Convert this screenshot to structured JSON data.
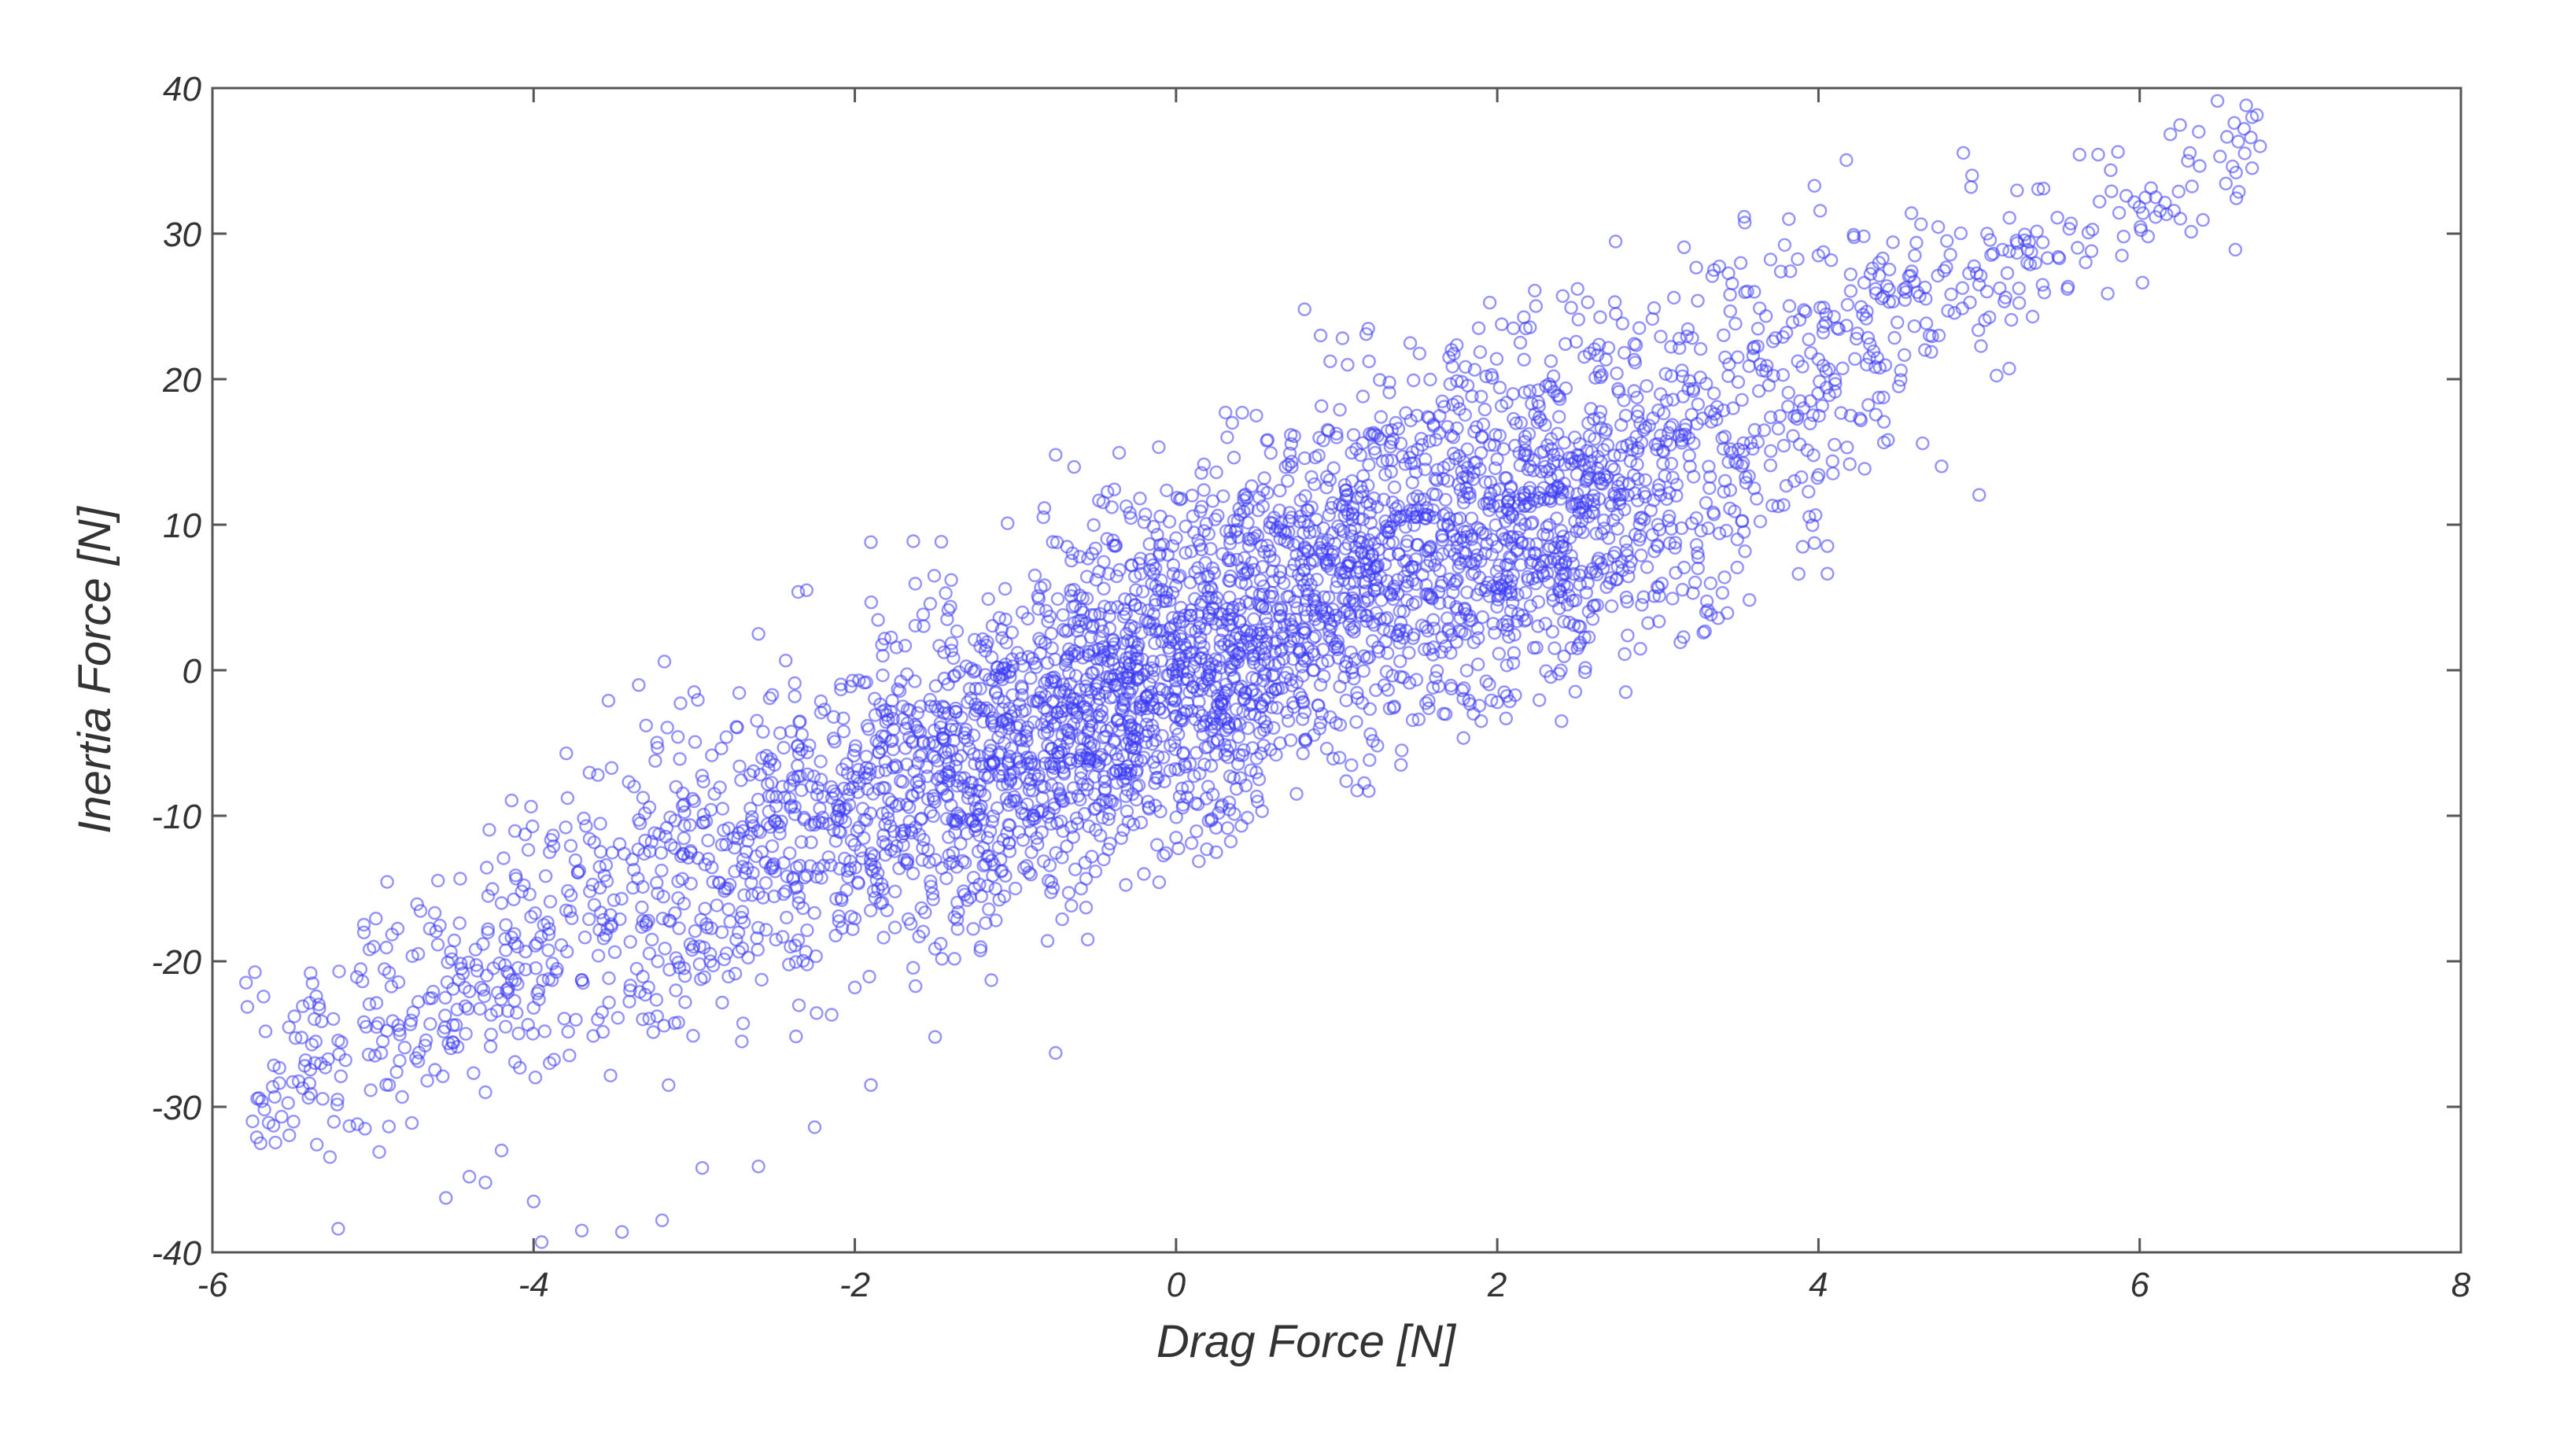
{
  "chart_data": {
    "type": "scatter",
    "title": "",
    "xlabel": "Drag Force [N]",
    "ylabel": "Inertia Force [N]",
    "xlim": [
      -6,
      8
    ],
    "ylim": [
      -40,
      40
    ],
    "x_ticks": [
      -6,
      -4,
      -2,
      0,
      2,
      4,
      6,
      8
    ],
    "y_ticks": [
      -40,
      -30,
      -20,
      -10,
      0,
      10,
      20,
      30,
      40
    ],
    "x_tick_labels": [
      "-6",
      "-4",
      "-2",
      "0",
      "2",
      "4",
      "6",
      "8"
    ],
    "y_tick_labels": [
      "-40",
      "-30",
      "-20",
      "-10",
      "0",
      "10",
      "20",
      "30",
      "40"
    ],
    "grid": false,
    "legend": "none",
    "marker": "hollow circle",
    "marker_color": "#3b3bf5",
    "axes_color": "#555555",
    "approx_point_count": 4000,
    "trend_line_approx": {
      "slope": 5.1,
      "intercept": 0.8
    },
    "series": [
      {
        "points": [
          [
            -5.75,
            -31.0
          ],
          [
            -5.7,
            -32.5
          ],
          [
            -5.62,
            -31.3
          ],
          [
            -5.5,
            -28.3
          ],
          [
            -5.35,
            -32.6
          ],
          [
            -5.2,
            -27.9
          ],
          [
            -5.05,
            -31.5
          ],
          [
            -4.9,
            -28.5
          ],
          [
            -4.75,
            -23.5
          ],
          [
            -4.55,
            -22.5
          ],
          [
            -4.45,
            -20.5
          ],
          [
            -4.4,
            -34.8
          ],
          [
            -4.3,
            -35.2
          ],
          [
            -4.2,
            -33.0
          ],
          [
            -4.0,
            -36.5
          ],
          [
            -3.95,
            -39.3
          ],
          [
            -3.7,
            -38.5
          ],
          [
            -3.45,
            -38.6
          ],
          [
            -3.2,
            -37.8
          ],
          [
            -2.95,
            -34.2
          ],
          [
            -2.6,
            -34.1
          ],
          [
            -2.25,
            -31.4
          ],
          [
            -1.9,
            -28.5
          ],
          [
            -1.5,
            -25.2
          ],
          [
            -0.75,
            -26.3
          ],
          [
            -1.15,
            -21.3
          ],
          [
            -0.55,
            -18.5
          ],
          [
            -0.2,
            -14.0
          ],
          [
            0.25,
            -12.5
          ],
          [
            0.75,
            -8.5
          ],
          [
            1.2,
            -8.3
          ],
          [
            1.4,
            -6.5
          ],
          [
            1.9,
            -3.5
          ],
          [
            2.4,
            -3.5
          ],
          [
            2.8,
            -1.5
          ],
          [
            2.1,
            0.5
          ],
          [
            -0.75,
            14.8
          ],
          [
            -1.9,
            8.8
          ],
          [
            -2.3,
            5.5
          ],
          [
            -2.6,
            2.5
          ],
          [
            -3.0,
            -1.5
          ],
          [
            -3.3,
            -3.8
          ],
          [
            -3.6,
            -7.2
          ],
          [
            -3.9,
            -12.5
          ],
          [
            -4.2,
            -16.0
          ],
          [
            -4.1,
            -19.0
          ],
          [
            -3.3,
            -17.5
          ],
          [
            -3.5,
            -15.8
          ],
          [
            -3.0,
            -9.0
          ],
          [
            -2.5,
            -6.5
          ],
          [
            -2.0,
            -5.5
          ],
          [
            -1.6,
            -8.0
          ],
          [
            -1.25,
            -11.0
          ],
          [
            -0.9,
            -12.5
          ],
          [
            -0.5,
            -9.5
          ],
          [
            0.0,
            -4.0
          ],
          [
            -0.3,
            -1.5
          ],
          [
            -0.8,
            0.5
          ],
          [
            -1.5,
            -2.5
          ],
          [
            -2.2,
            -10.5
          ],
          [
            -2.7,
            -13.5
          ],
          [
            -1.8,
            -16.5
          ],
          [
            -1.0,
            -15.0
          ],
          [
            0.2,
            -8.0
          ],
          [
            0.6,
            -1.5
          ],
          [
            0.2,
            5.0
          ],
          [
            0.7,
            9.5
          ],
          [
            1.2,
            6.5
          ],
          [
            1.6,
            11.0
          ],
          [
            1.3,
            3.5
          ],
          [
            0.9,
            -1.0
          ],
          [
            1.8,
            2.5
          ],
          [
            2.2,
            8.0
          ],
          [
            2.6,
            12.0
          ],
          [
            3.0,
            10.0
          ],
          [
            2.9,
            4.5
          ],
          [
            2.5,
            1.5
          ],
          [
            3.3,
            4.0
          ],
          [
            3.2,
            14.0
          ],
          [
            2.8,
            17.5
          ],
          [
            2.0,
            14.5
          ],
          [
            1.5,
            17.5
          ],
          [
            1.0,
            16.0
          ],
          [
            0.5,
            17.5
          ],
          [
            0.35,
            17.0
          ],
          [
            0.8,
            24.8
          ],
          [
            0.9,
            23.0
          ],
          [
            1.7,
            21.5
          ],
          [
            2.1,
            23.5
          ],
          [
            2.5,
            26.2
          ],
          [
            3.1,
            25.6
          ],
          [
            3.35,
            27.5
          ],
          [
            3.6,
            26.0
          ],
          [
            3.8,
            23.2
          ],
          [
            4.0,
            28.5
          ],
          [
            4.2,
            27.2
          ],
          [
            4.4,
            28.3
          ],
          [
            4.6,
            28.5
          ],
          [
            4.8,
            29.5
          ],
          [
            4.95,
            33.2
          ],
          [
            5.05,
            30.0
          ],
          [
            5.3,
            28.0
          ],
          [
            5.5,
            28.3
          ],
          [
            5.7,
            28.8
          ],
          [
            5.9,
            29.8
          ],
          [
            6.1,
            32.5
          ],
          [
            6.3,
            35.0
          ],
          [
            6.5,
            35.3
          ],
          [
            6.65,
            37.2
          ],
          [
            6.7,
            34.5
          ],
          [
            6.75,
            36.0
          ],
          [
            6.7,
            38.0
          ],
          [
            6.6,
            34.2
          ],
          [
            5.75,
            32.2
          ],
          [
            5.55,
            26.2
          ],
          [
            5.0,
            26.5
          ],
          [
            4.75,
            23.0
          ],
          [
            4.5,
            19.5
          ],
          [
            4.3,
            21.0
          ],
          [
            4.1,
            15.5
          ],
          [
            3.85,
            13.0
          ],
          [
            3.6,
            12.5
          ],
          [
            3.3,
            11.5
          ],
          [
            3.0,
            8.5
          ],
          [
            2.7,
            6.0
          ],
          [
            2.4,
            5.0
          ],
          [
            3.95,
            18.5
          ],
          [
            4.2,
            17.5
          ],
          [
            3.5,
            19.8
          ],
          [
            3.15,
            20.6
          ],
          [
            2.35,
            20.2
          ],
          [
            1.9,
            18.8
          ],
          [
            -1.1,
            3.6
          ],
          [
            -0.6,
            7.8
          ],
          [
            0.1,
            12.0
          ],
          [
            -0.4,
            11.2
          ],
          [
            -1.4,
            6.2
          ],
          [
            -2.8,
            -4.6
          ],
          [
            -3.8,
            -10.8
          ],
          [
            -4.5,
            -25.6
          ],
          [
            -4.3,
            -29.0
          ],
          [
            -3.9,
            -27.0
          ],
          [
            -3.6,
            -24.0
          ],
          [
            -3.4,
            -22.0
          ],
          [
            -3.7,
            -21.3
          ],
          [
            -4.0,
            -23.2
          ],
          [
            -2.9,
            -20.0
          ],
          [
            -2.4,
            -19.0
          ],
          [
            -2.0,
            -21.8
          ],
          [
            -1.6,
            -18.3
          ],
          [
            -1.3,
            -15.8
          ],
          [
            -0.8,
            -18.6
          ],
          [
            -0.45,
            -13.0
          ],
          [
            0.0,
            -11.5
          ],
          [
            0.4,
            -7.4
          ],
          [
            0.9,
            -3.6
          ],
          [
            1.6,
            -1.2
          ],
          [
            2.0,
            -2.2
          ],
          [
            2.3,
            3.2
          ],
          [
            1.15,
            12.6
          ],
          [
            0.55,
            13.2
          ],
          [
            -0.1,
            8.6
          ],
          [
            -0.6,
            3.0
          ],
          [
            -1.05,
            -3.4
          ],
          [
            -1.45,
            -7.4
          ],
          [
            -1.85,
            -5.0
          ],
          [
            -2.45,
            -8.0
          ],
          [
            -2.15,
            -13.4
          ],
          [
            -1.2,
            -12.2
          ],
          [
            -0.2,
            -6.0
          ],
          [
            0.3,
            -2.4
          ],
          [
            0.8,
            2.6
          ],
          [
            1.35,
            8.8
          ],
          [
            1.75,
            6.2
          ],
          [
            2.25,
            11.6
          ],
          [
            2.65,
            9.4
          ],
          [
            3.25,
            7.0
          ],
          [
            2.05,
            5.6
          ],
          [
            1.45,
            1.2
          ],
          [
            0.95,
            5.0
          ],
          [
            0.45,
            2.0
          ],
          [
            -0.25,
            -2.6
          ],
          [
            -0.7,
            -7.0
          ],
          [
            -1.65,
            -11.0
          ],
          [
            -2.65,
            -9.5
          ],
          [
            -3.1,
            -14.5
          ],
          [
            -3.55,
            -18.2
          ],
          [
            -2.35,
            -16.0
          ],
          [
            -0.95,
            -5.4
          ],
          [
            0.15,
            0.8
          ],
          [
            0.65,
            6.8
          ],
          [
            1.05,
            10.6
          ],
          [
            1.55,
            13.8
          ],
          [
            1.95,
            11.0
          ],
          [
            2.45,
            14.6
          ],
          [
            2.85,
            13.4
          ],
          [
            3.45,
            15.2
          ],
          [
            3.75,
            16.6
          ]
        ]
      }
    ]
  }
}
